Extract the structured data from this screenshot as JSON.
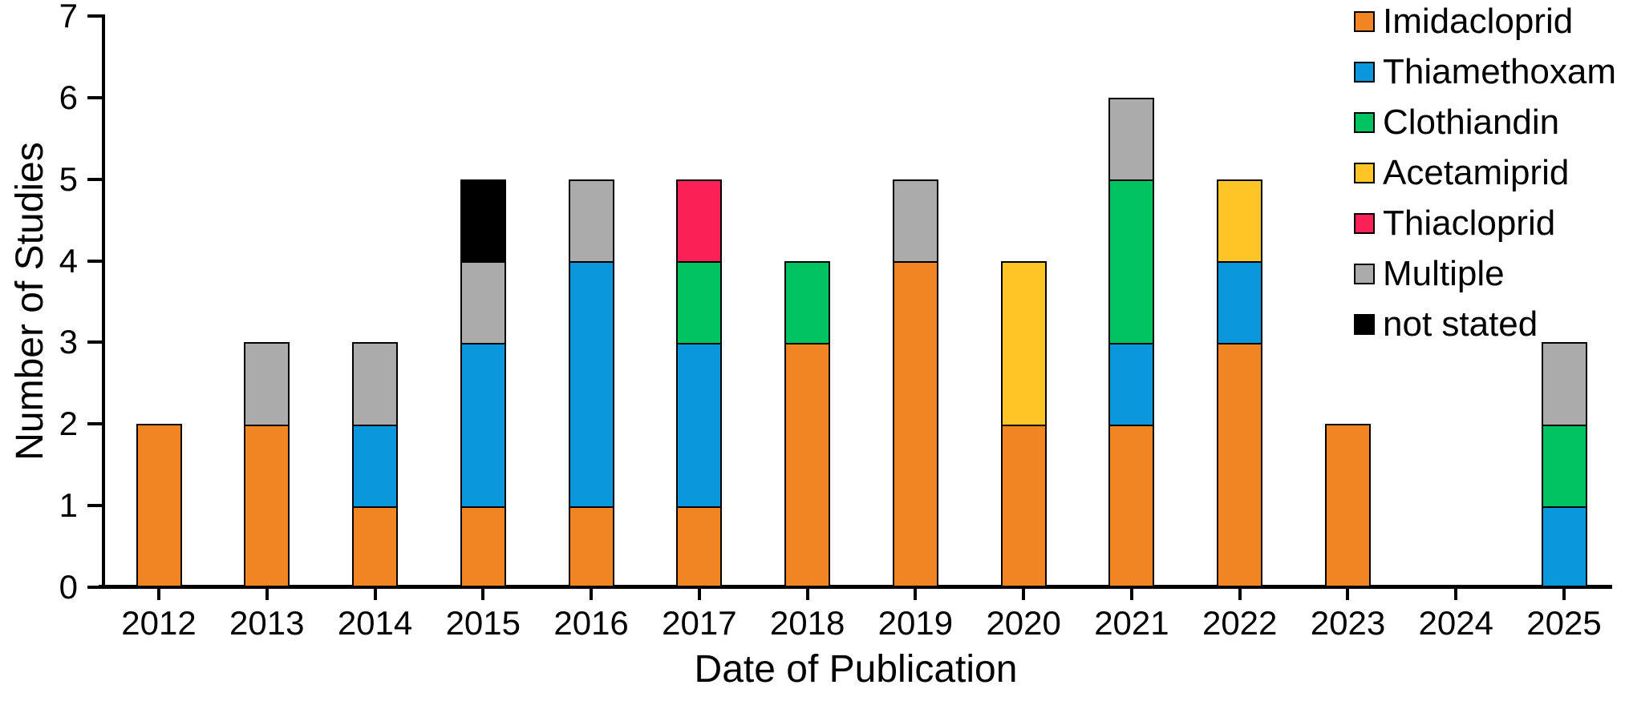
{
  "chart_data": {
    "type": "bar",
    "stacked": true,
    "title": "",
    "xlabel": "Date of Publication",
    "ylabel": "Number of Studies",
    "ylim": [
      0,
      7
    ],
    "yticks": [
      0,
      1,
      2,
      3,
      4,
      5,
      6,
      7
    ],
    "grid": false,
    "legend_position": "top-right",
    "categories": [
      "2012",
      "2013",
      "2014",
      "2015",
      "2016",
      "2017",
      "2018",
      "2019",
      "2020",
      "2021",
      "2022",
      "2023",
      "2024",
      "2025"
    ],
    "series": [
      {
        "name": "Imidacloprid",
        "color": "#F08522",
        "values": [
          2,
          2,
          1,
          1,
          1,
          1,
          3,
          4,
          2,
          2,
          3,
          2,
          0,
          0
        ]
      },
      {
        "name": "Thiamethoxam",
        "color": "#0A97DC",
        "values": [
          0,
          0,
          1,
          2,
          3,
          2,
          0,
          0,
          0,
          1,
          1,
          0,
          0,
          1
        ]
      },
      {
        "name": "Clothiandin",
        "color": "#00C45F",
        "values": [
          0,
          0,
          0,
          0,
          0,
          1,
          1,
          0,
          0,
          2,
          0,
          0,
          0,
          1
        ]
      },
      {
        "name": "Acetamiprid",
        "color": "#FFC425",
        "values": [
          0,
          0,
          0,
          0,
          0,
          0,
          0,
          0,
          2,
          0,
          1,
          0,
          0,
          0
        ]
      },
      {
        "name": "Thiacloprid",
        "color": "#FA2159",
        "values": [
          0,
          0,
          0,
          0,
          0,
          1,
          0,
          0,
          0,
          0,
          0,
          0,
          0,
          0
        ]
      },
      {
        "name": "Multiple",
        "color": "#ABABAB",
        "values": [
          0,
          1,
          1,
          1,
          1,
          0,
          0,
          1,
          0,
          1,
          0,
          0,
          0,
          1
        ]
      },
      {
        "name": "not stated",
        "color": "#000000",
        "values": [
          0,
          0,
          0,
          1,
          0,
          0,
          0,
          0,
          0,
          0,
          0,
          0,
          0,
          0
        ]
      }
    ]
  }
}
